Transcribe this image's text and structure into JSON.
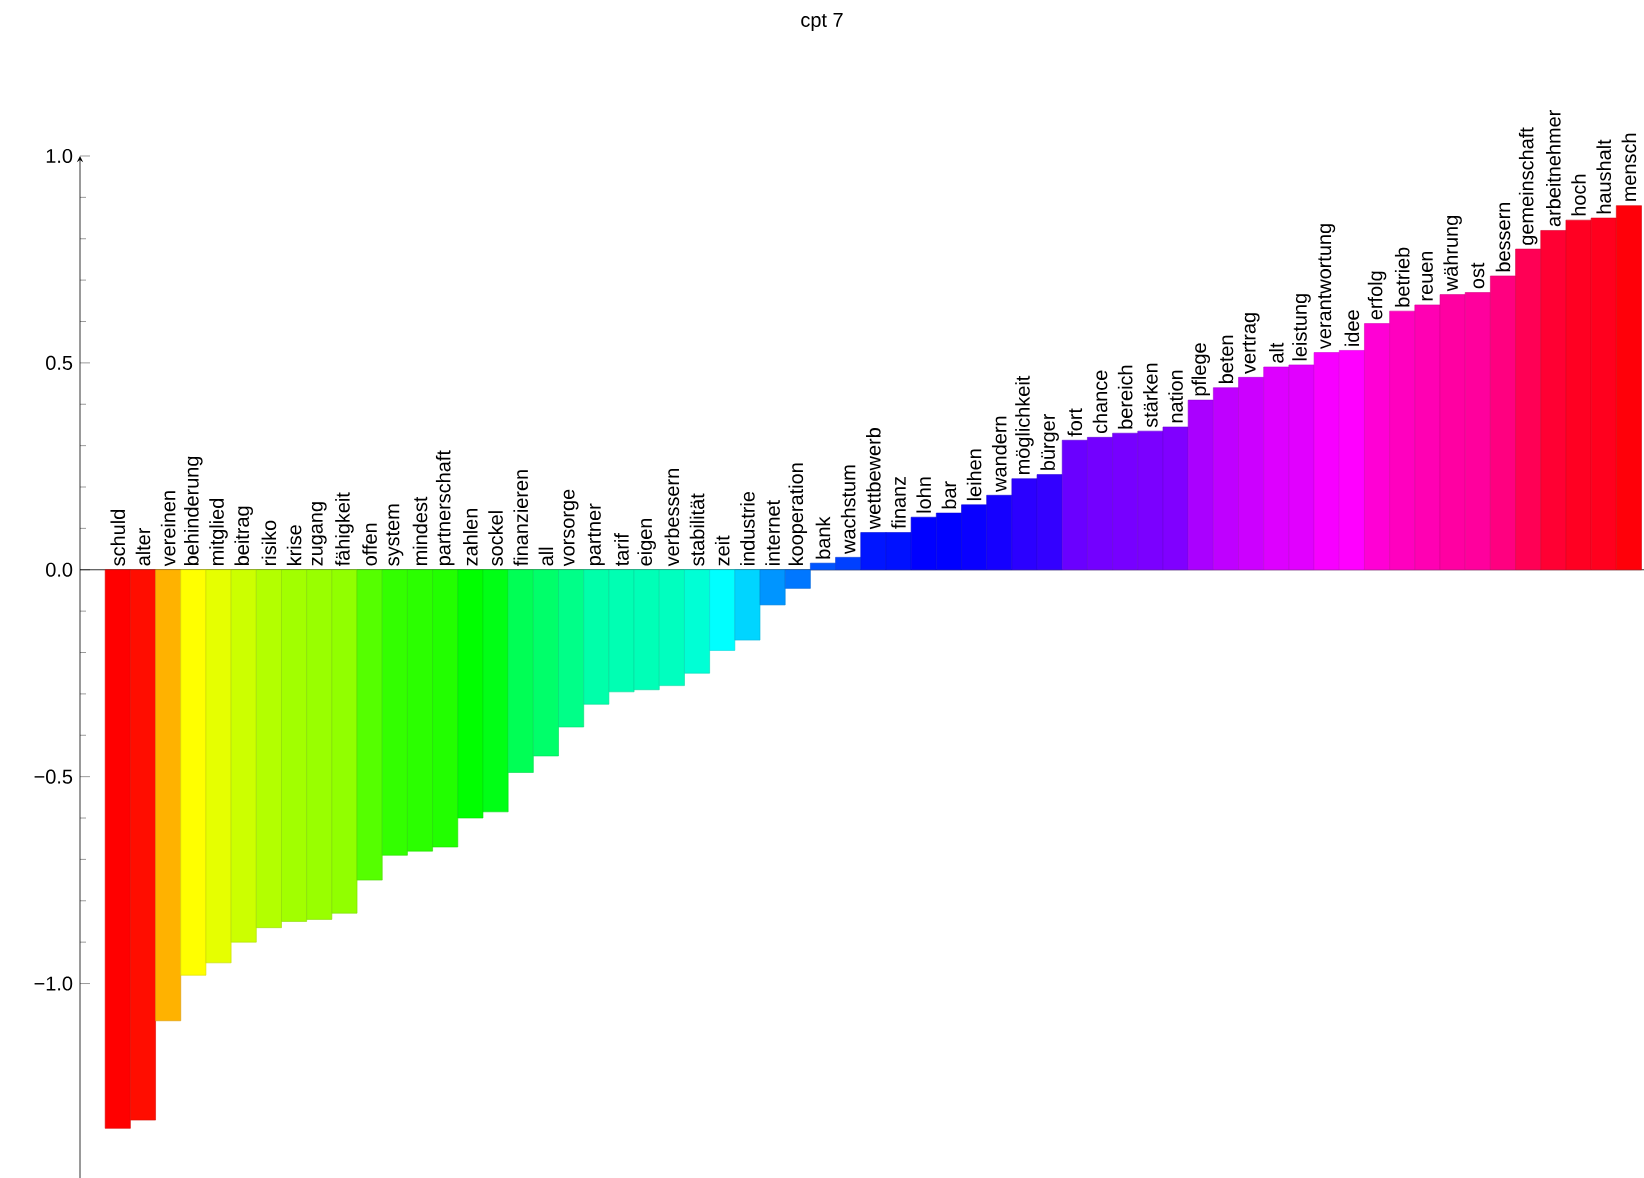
{
  "chart_data": {
    "type": "bar",
    "title": "cpt 7",
    "categories": [
      "schuld",
      "alter",
      "vereinen",
      "behinderung",
      "mitglied",
      "beitrag",
      "risiko",
      "krise",
      "zugang",
      "fähigkeit",
      "offen",
      "system",
      "mindest",
      "partnerschaft",
      "zahlen",
      "sockel",
      "finanzieren",
      "all",
      "vorsorge",
      "partner",
      "tarif",
      "eigen",
      "verbessern",
      "stabilität",
      "zeit",
      "industrie",
      "internet",
      "kooperation",
      "bank",
      "wachstum",
      "wettbewerb",
      "finanz",
      "lohn",
      "bar",
      "leihen",
      "wandern",
      "möglichkeit",
      "bürger",
      "fort",
      "chance",
      "bereich",
      "stärken",
      "nation",
      "pflege",
      "beten",
      "vertrag",
      "alt",
      "leistung",
      "verantwortung",
      "idee",
      "erfolg",
      "betrieb",
      "reuen",
      "währung",
      "ost",
      "bessern",
      "gemeinschaft",
      "arbeitnehmer",
      "hoch",
      "haushalt",
      "mensch"
    ],
    "values": [
      -1.35,
      -1.33,
      -1.09,
      -0.98,
      -0.95,
      -0.9,
      -0.865,
      -0.85,
      -0.845,
      -0.83,
      -0.75,
      -0.69,
      -0.68,
      -0.67,
      -0.6,
      -0.585,
      -0.49,
      -0.45,
      -0.38,
      -0.325,
      -0.295,
      -0.29,
      -0.28,
      -0.25,
      -0.195,
      -0.17,
      -0.085,
      -0.045,
      0.016,
      0.03,
      0.09,
      0.09,
      0.127,
      0.137,
      0.157,
      0.18,
      0.22,
      0.23,
      0.313,
      0.32,
      0.33,
      0.335,
      0.345,
      0.41,
      0.44,
      0.465,
      0.49,
      0.495,
      0.525,
      0.53,
      0.595,
      0.625,
      0.64,
      0.665,
      0.67,
      0.71,
      0.775,
      0.82,
      0.845,
      0.85,
      0.88
    ],
    "colors": [
      "#ff0000",
      "#ff0d00",
      "#ffb200",
      "#ffff00",
      "#e6ff00",
      "#ccff00",
      "#b3ff00",
      "#a2ff00",
      "#99ff00",
      "#91ff00",
      "#55ff00",
      "#33ff00",
      "#2bff00",
      "#22ff00",
      "#00ff00",
      "#00ff15",
      "#00ff55",
      "#00ff6a",
      "#00ff88",
      "#00ffaa",
      "#00ffb3",
      "#00ffb7",
      "#00ffbf",
      "#00ffd5",
      "#00ffff",
      "#00d5ff",
      "#0095ff",
      "#0077ff",
      "#0055ff",
      "#0040ff",
      "#0015ff",
      "#0011ff",
      "#0000ff",
      "#0000ff",
      "#0900ff",
      "#1500ff",
      "#2b00ff",
      "#3300ff",
      "#6a00ff",
      "#7300ff",
      "#7700ff",
      "#7b00ff",
      "#8000ff",
      "#aa00ff",
      "#bf00ff",
      "#cc00ff",
      "#dd00ff",
      "#e100ff",
      "#f700ff",
      "#ff00ff",
      "#ff00d5",
      "#ff00bf",
      "#ff00b3",
      "#ff00a2",
      "#ff009d",
      "#ff0080",
      "#ff0055",
      "#ff0033",
      "#ff0022",
      "#ff001e",
      "#ff0009"
    ],
    "ylim": [
      -1.47,
      1.0
    ],
    "yticks": [
      {
        "value": -1.0,
        "label": "−1.0"
      },
      {
        "value": -0.5,
        "label": "−0.5"
      },
      {
        "value": 0.0,
        "label": "0.0"
      },
      {
        "value": 0.5,
        "label": "0.5"
      },
      {
        "value": 1.0,
        "label": "1.0"
      }
    ]
  }
}
